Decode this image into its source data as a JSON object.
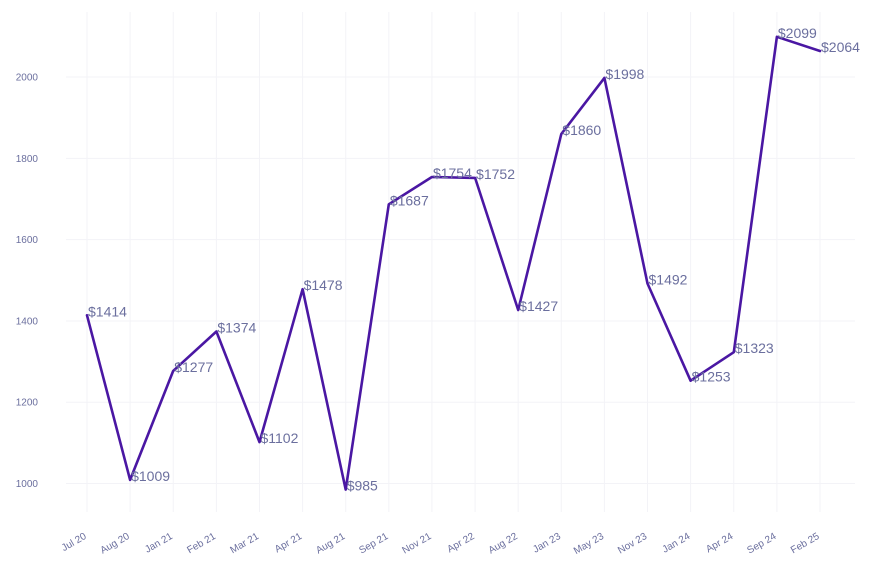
{
  "chart_data": {
    "type": "line",
    "title": "",
    "xlabel": "",
    "ylabel": "",
    "categories": [
      "Jul 20",
      "Aug 20",
      "Jan 21",
      "Feb 21",
      "Mar 21",
      "Apr 21",
      "Aug 21",
      "Sep 21",
      "Nov 21",
      "Apr 22",
      "Aug 22",
      "Jan 23",
      "May 23",
      "Nov 23",
      "Jan 24",
      "Apr 24",
      "Sep 24",
      "Feb 25"
    ],
    "series": [
      {
        "values": [
          1414,
          1009,
          1277,
          1374,
          1102,
          1478,
          985,
          1687,
          1754,
          1752,
          1427,
          1860,
          1998,
          1492,
          1253,
          1323,
          2099,
          2064
        ],
        "labels": [
          "$1414",
          "$1009",
          "$1277",
          "$1374",
          "$1102",
          "$1478",
          "$985",
          "$1687",
          "$1754",
          "$1752",
          "$1427",
          "$1860",
          "$1998",
          "$1492",
          "$1253",
          "$1323",
          "$2099",
          "$2064"
        ]
      }
    ],
    "yticks": [
      "1000",
      "1200",
      "1400",
      "1600",
      "1800",
      "2000"
    ],
    "ytick_values": [
      1000,
      1200,
      1400,
      1600,
      1800,
      2000
    ],
    "ylim": [
      930,
      2160
    ],
    "grid": true,
    "legend": "none",
    "line_color": "#4a17a3"
  }
}
